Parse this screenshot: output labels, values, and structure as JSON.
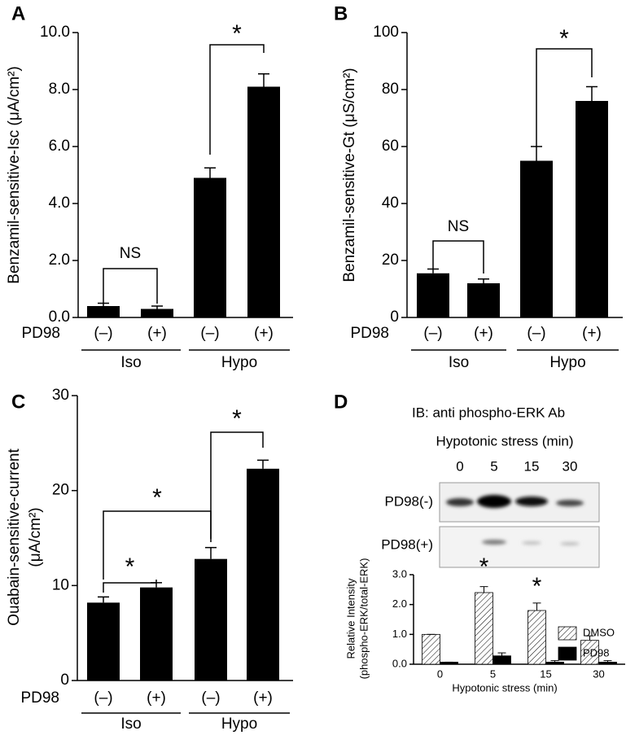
{
  "chart_data": [
    {
      "type": "bar",
      "panel": "A",
      "ylabel": "Benzamil-sensitive-Isc (μA/cm²)",
      "categories": [
        "(–)",
        "(+)",
        "(–)",
        "(+)"
      ],
      "row_label": "PD98",
      "groups": [
        "Iso",
        "Hypo"
      ],
      "values": [
        0.4,
        0.3,
        4.9,
        8.1
      ],
      "errors": [
        0.1,
        0.1,
        0.35,
        0.45
      ],
      "color": "#000000",
      "ylim": [
        0,
        10
      ],
      "yticks": [
        {
          "value": 0,
          "label": "0.0"
        },
        {
          "value": 2,
          "label": "2.0"
        },
        {
          "value": 4,
          "label": "4.0"
        },
        {
          "value": 6,
          "label": "6.0"
        },
        {
          "value": 8,
          "label": "8.0"
        },
        {
          "value": 10,
          "label": "10.0"
        }
      ],
      "annotations": [
        "NS",
        "*"
      ]
    },
    {
      "type": "bar",
      "panel": "B",
      "ylabel": "Benzamil-sensitive-Gt (μS/cm²)",
      "categories": [
        "(–)",
        "(+)",
        "(–)",
        "(+)"
      ],
      "row_label": "PD98",
      "groups": [
        "Iso",
        "Hypo"
      ],
      "values": [
        15.5,
        12,
        55,
        76
      ],
      "errors": [
        1.5,
        1.5,
        5,
        5
      ],
      "color": "#000000",
      "ylim": [
        0,
        100
      ],
      "yticks": [
        0,
        20,
        40,
        60,
        80,
        100
      ],
      "annotations": [
        "NS",
        "*"
      ]
    },
    {
      "type": "bar",
      "panel": "C",
      "ylabel": [
        "Ouabain-sensitive-current",
        "(μA/cm²)"
      ],
      "categories": [
        "(–)",
        "(+)",
        "(–)",
        "(+)"
      ],
      "row_label": "PD98",
      "groups": [
        "Iso",
        "Hypo"
      ],
      "values": [
        8.2,
        9.8,
        12.8,
        22.3
      ],
      "errors": [
        0.6,
        0.5,
        1.2,
        0.9
      ],
      "color": "#000000",
      "ylim": [
        0,
        30
      ],
      "yticks": [
        0,
        10,
        20,
        30
      ],
      "annotations": [
        "*",
        "*",
        "*"
      ]
    },
    {
      "type": "grouped_bar",
      "panel": "D",
      "blot": {
        "title": "IB: anti phospho-ERK Ab",
        "subtitle": "Hypotonic stress (min)",
        "lanes": [
          "0",
          "5",
          "15",
          "30"
        ],
        "rows": [
          "PD98(-)",
          "PD98(+)"
        ]
      },
      "ylabel": [
        "Relative Intensity",
        "(phospho-ERK/total-ERK)"
      ],
      "xlabel": "Hypotonic stress (min)",
      "categories": [
        "0",
        "5",
        "15",
        "30"
      ],
      "series": [
        {
          "name": "DMSO",
          "color": "#000000",
          "hatch": true,
          "values": [
            1.0,
            2.4,
            1.8,
            0.8
          ],
          "errors": [
            0,
            0.2,
            0.25,
            0.15
          ]
        },
        {
          "name": "PD98",
          "color": "#000000",
          "hatch": false,
          "values": [
            0.07,
            0.28,
            0.07,
            0.07
          ],
          "errors": [
            0,
            0.1,
            0.05,
            0.05
          ]
        }
      ],
      "ylim": [
        0,
        3
      ],
      "yticks": [
        {
          "value": 0,
          "label": "0.0"
        },
        {
          "value": 1,
          "label": "1.0"
        },
        {
          "value": 2,
          "label": "2.0"
        },
        {
          "value": 3,
          "label": "3.0"
        }
      ],
      "legend": "upper right",
      "annotations": [
        "*",
        "*"
      ]
    }
  ]
}
